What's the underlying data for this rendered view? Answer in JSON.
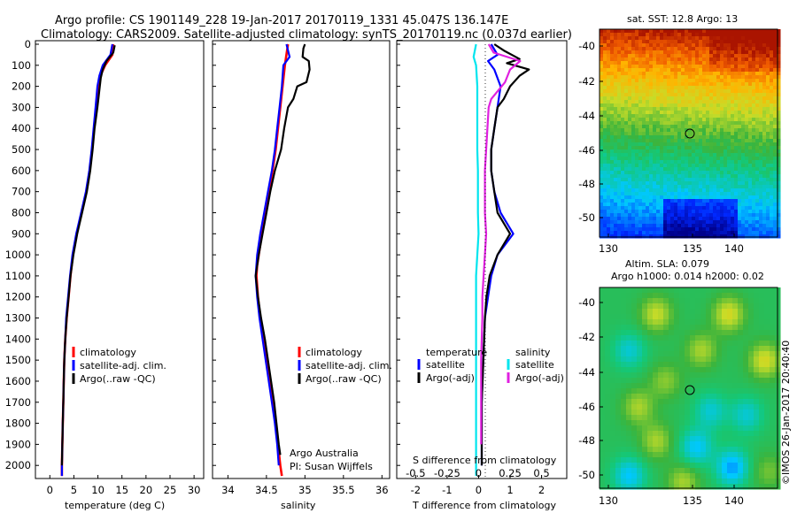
{
  "header": {
    "line1": "Argo profile: CS 1901149_228 19-Jan-2017 20170119_1331 45.047S 136.147E",
    "line2": "Climatology: CARS2009. Satellite-adjusted climatology: synTS_20170119.nc (0.037d earlier)"
  },
  "colors": {
    "climatology": "#ff0000",
    "satellite": "#0000ff",
    "argo": "#000000",
    "sal_satellite": "#00e5ee",
    "sal_argo": "#e020e0",
    "grid_dots": "#000000"
  },
  "depth_axis": {
    "ticks": [
      "0",
      "100",
      "200",
      "300",
      "400",
      "500",
      "600",
      "700",
      "800",
      "900",
      "1000",
      "1100",
      "1200",
      "1300",
      "1400",
      "1500",
      "1600",
      "1700",
      "1800",
      "1900",
      "2000"
    ]
  },
  "legend": {
    "climatology": "climatology",
    "satellite": "satellite-adj. clim.",
    "argo": "Argo(..raw -QC)"
  },
  "diff_legend": {
    "temperature_head": "temperature",
    "salinity_head": "salinity",
    "satellite": "satellite",
    "argo": "Argo(-adj)"
  },
  "credits": {
    "line1": "Argo Australia",
    "line2": "PI: Susan Wijffels"
  },
  "maps": {
    "sst_title": "sat. SST: 12.8 Argo: 13",
    "sla_title1": "Altim. SLA: 0.079",
    "sla_title2": "Argo h1000: 0.014 h2000: 0.02",
    "lat_ticks": [
      "-40",
      "-42",
      "-44",
      "-46",
      "-48",
      "-50"
    ],
    "lon_ticks": [
      "130",
      "135",
      "140"
    ],
    "watermark": "©IMOS 26-Jan-2017 20:40:40"
  },
  "chart_data": [
    {
      "type": "line",
      "title": "",
      "xlabel": "temperature (deg C)",
      "ylabel": "",
      "xlim": [
        -3,
        32
      ],
      "ylim": [
        2050,
        0
      ],
      "x_ticks": [
        "0",
        "5",
        "10",
        "15",
        "20",
        "25",
        "30"
      ],
      "series": [
        {
          "name": "climatology",
          "depth": [
            0,
            50,
            100,
            150,
            200,
            300,
            400,
            500,
            600,
            700,
            800,
            900,
            1000,
            1100,
            1200,
            1300,
            1400,
            1500,
            1600,
            1700,
            1800,
            1900,
            2000,
            2050
          ],
          "values": [
            13.2,
            13.0,
            11.5,
            10.5,
            10.0,
            9.6,
            9.2,
            8.8,
            8.3,
            7.6,
            6.6,
            5.6,
            4.8,
            4.3,
            3.9,
            3.5,
            3.2,
            3.0,
            2.9,
            2.8,
            2.7,
            2.6,
            2.5,
            2.5
          ]
        },
        {
          "name": "satellite-adj. clim.",
          "depth": [
            0,
            50,
            100,
            150,
            200,
            300,
            400,
            500,
            600,
            700,
            800,
            900,
            1000,
            1100,
            1200,
            1300,
            1400,
            1500,
            1600,
            1700,
            1800,
            1900,
            2000,
            2050
          ],
          "values": [
            13.0,
            12.6,
            11.0,
            10.3,
            9.9,
            9.5,
            9.1,
            8.7,
            8.2,
            7.5,
            6.5,
            5.5,
            4.7,
            4.2,
            3.8,
            3.4,
            3.2,
            3.0,
            2.9,
            2.8,
            2.7,
            2.6,
            2.5,
            2.5
          ]
        },
        {
          "name": "Argo(..raw -QC)",
          "depth": [
            5,
            40,
            80,
            120,
            160,
            200,
            260,
            300,
            400,
            500,
            600,
            700,
            800,
            900,
            1000,
            1100,
            1200,
            1300,
            1400,
            1500,
            1600,
            1700,
            1800,
            1900,
            2000
          ],
          "values": [
            13.5,
            13.2,
            11.8,
            11.0,
            10.6,
            10.4,
            10.1,
            9.9,
            9.3,
            8.9,
            8.4,
            7.7,
            6.7,
            5.7,
            4.9,
            4.3,
            3.9,
            3.5,
            3.2,
            3.0,
            2.9,
            2.8,
            2.7,
            2.6,
            2.5
          ]
        }
      ]
    },
    {
      "type": "line",
      "title": "",
      "xlabel": "salinity",
      "ylabel": "",
      "xlim": [
        33.8,
        36.1
      ],
      "ylim": [
        2050,
        0
      ],
      "x_ticks": [
        "34",
        "34.5",
        "35",
        "35.5",
        "36"
      ],
      "series": [
        {
          "name": "climatology",
          "depth": [
            0,
            100,
            200,
            300,
            400,
            500,
            600,
            700,
            800,
            900,
            1000,
            1050,
            1100,
            1200,
            1300,
            1400,
            1500,
            1600,
            1700,
            1800,
            1900,
            2000,
            2050
          ],
          "values": [
            34.78,
            34.74,
            34.71,
            34.68,
            34.65,
            34.62,
            34.58,
            34.53,
            34.49,
            34.44,
            34.4,
            34.38,
            34.37,
            34.39,
            34.42,
            34.46,
            34.5,
            34.54,
            34.58,
            34.62,
            34.65,
            34.68,
            34.7
          ]
        },
        {
          "name": "satellite-adj. clim.",
          "depth": [
            0,
            60,
            100,
            200,
            300,
            400,
            500,
            600,
            700,
            800,
            900,
            1000,
            1100,
            1200,
            1300,
            1400,
            1500,
            1600,
            1700,
            1800,
            1900,
            2000
          ],
          "values": [
            34.76,
            34.8,
            34.72,
            34.7,
            34.67,
            34.64,
            34.61,
            34.57,
            34.52,
            34.47,
            34.42,
            34.38,
            34.36,
            34.38,
            34.41,
            34.45,
            34.49,
            34.53,
            34.57,
            34.61,
            34.64,
            34.66
          ]
        },
        {
          "name": "Argo(..raw -QC)",
          "depth": [
            0,
            20,
            60,
            80,
            120,
            180,
            200,
            260,
            300,
            400,
            500,
            600,
            700,
            800,
            900,
            1000,
            1100,
            1200,
            1300,
            1400,
            1500,
            1600,
            1700,
            1800,
            1900,
            1950
          ],
          "values": [
            35.0,
            34.98,
            34.97,
            35.05,
            35.06,
            35.02,
            34.9,
            34.85,
            34.78,
            34.73,
            34.69,
            34.61,
            34.55,
            34.5,
            34.45,
            34.4,
            34.36,
            34.39,
            34.43,
            34.48,
            34.52,
            34.56,
            34.6,
            34.63,
            34.66,
            34.68
          ]
        }
      ]
    },
    {
      "type": "line",
      "title": "",
      "xlabel": "T difference from climatology",
      "xlabel_top": "S difference from climatology",
      "ylabel": "",
      "xlim": [
        -2.6,
        2.8
      ],
      "ylim": [
        2050,
        0
      ],
      "x_ticks": [
        "-2",
        "-1",
        "0",
        "1",
        "2"
      ],
      "x2_ticks": [
        "-0.5",
        "-0.25",
        "0",
        "0.25",
        "0.5"
      ],
      "series": [
        {
          "name": "temperature satellite",
          "depth": [
            0,
            50,
            80,
            120,
            200,
            300,
            400,
            500,
            600,
            700,
            800,
            900,
            1000,
            1100,
            1200,
            1300,
            1500,
            1700,
            1900,
            2000
          ],
          "values": [
            0.4,
            0.6,
            0.3,
            0.5,
            0.7,
            0.6,
            0.5,
            0.4,
            0.4,
            0.5,
            0.7,
            1.1,
            0.6,
            0.4,
            0.3,
            0.2,
            0.15,
            0.1,
            0.1,
            0.1
          ]
        },
        {
          "name": "temperature Argo(-adj)",
          "depth": [
            0,
            30,
            70,
            90,
            120,
            150,
            200,
            260,
            300,
            400,
            500,
            600,
            700,
            800,
            900,
            1000,
            1100,
            1200,
            1300,
            1500,
            1700,
            1900,
            2000
          ],
          "values": [
            0.5,
            0.8,
            1.3,
            0.9,
            1.6,
            1.3,
            1.0,
            0.8,
            0.6,
            0.5,
            0.4,
            0.4,
            0.5,
            0.6,
            1.0,
            0.6,
            0.35,
            0.25,
            0.2,
            0.15,
            0.1,
            0.1,
            0.1
          ]
        },
        {
          "name": "salinity satellite",
          "depth": [
            0,
            60,
            100,
            200,
            300,
            400,
            500,
            600,
            700,
            800,
            900,
            1000,
            1100,
            1200,
            1300,
            1400,
            1500,
            1600,
            1700,
            1800,
            1900,
            2000,
            2050
          ],
          "values": [
            -0.02,
            -0.04,
            -0.02,
            -0.01,
            -0.01,
            -0.01,
            -0.01,
            -0.005,
            -0.005,
            -0.005,
            0.0,
            -0.01,
            -0.02,
            -0.02,
            -0.02,
            -0.02,
            -0.02,
            -0.02,
            -0.02,
            -0.02,
            -0.02,
            -0.02,
            -0.02
          ]
        },
        {
          "name": "salinity Argo(-adj)",
          "depth": [
            0,
            40,
            80,
            120,
            180,
            260,
            300,
            400,
            500,
            600,
            700,
            800,
            900,
            1000,
            1100,
            1200,
            1300,
            1500,
            1700,
            1900
          ],
          "values": [
            0.08,
            0.12,
            0.33,
            0.25,
            0.21,
            0.1,
            0.08,
            0.07,
            0.06,
            0.05,
            0.05,
            0.05,
            0.06,
            0.05,
            0.04,
            0.03,
            0.03,
            0.02,
            0.02,
            0.02
          ]
        }
      ]
    }
  ]
}
